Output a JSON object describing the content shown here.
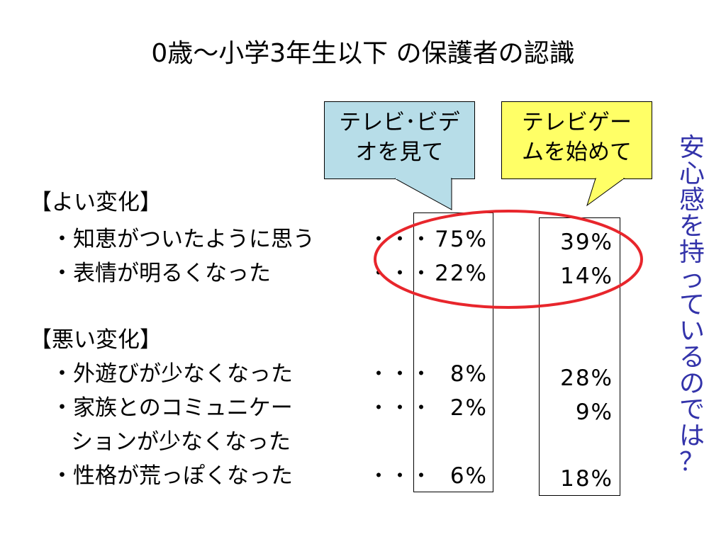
{
  "title": "0歳～小学3年生以下 の保護者の認識",
  "callouts": {
    "tv_video": {
      "line1": "テレビ･ビデ",
      "line2": "オを見て",
      "color": "#b7dde8"
    },
    "tv_game": {
      "line1": "テレビゲー",
      "line2": "ムを始めて",
      "color": "#ffff66"
    }
  },
  "sections": {
    "good": {
      "heading": "【よい変化】",
      "items": [
        {
          "label": "・知恵がついたように思う",
          "dots": "・・・",
          "tv_video": "75%",
          "tv_game": "39%"
        },
        {
          "label": "・表情が明るくなった",
          "dots": "・・・",
          "tv_video": "22%",
          "tv_game": "14%"
        }
      ]
    },
    "bad": {
      "heading": "【悪い変化】",
      "items": [
        {
          "label": "・外遊びが少なくなった",
          "dots": "・・・",
          "tv_video": "8%",
          "tv_game": "28%"
        },
        {
          "label": "・家族とのコミュニケー",
          "label2": "ションが少なくなった",
          "dots": "・・・",
          "tv_video": "2%",
          "tv_game": "9%"
        },
        {
          "label": "・性格が荒っぽくなった",
          "dots": "・・・",
          "tv_video": "6%",
          "tv_game": "18%"
        }
      ]
    }
  },
  "side_note": "安心感を持っているのでは？",
  "highlight_color": "#e8262c",
  "side_note_color": "#3333aa"
}
